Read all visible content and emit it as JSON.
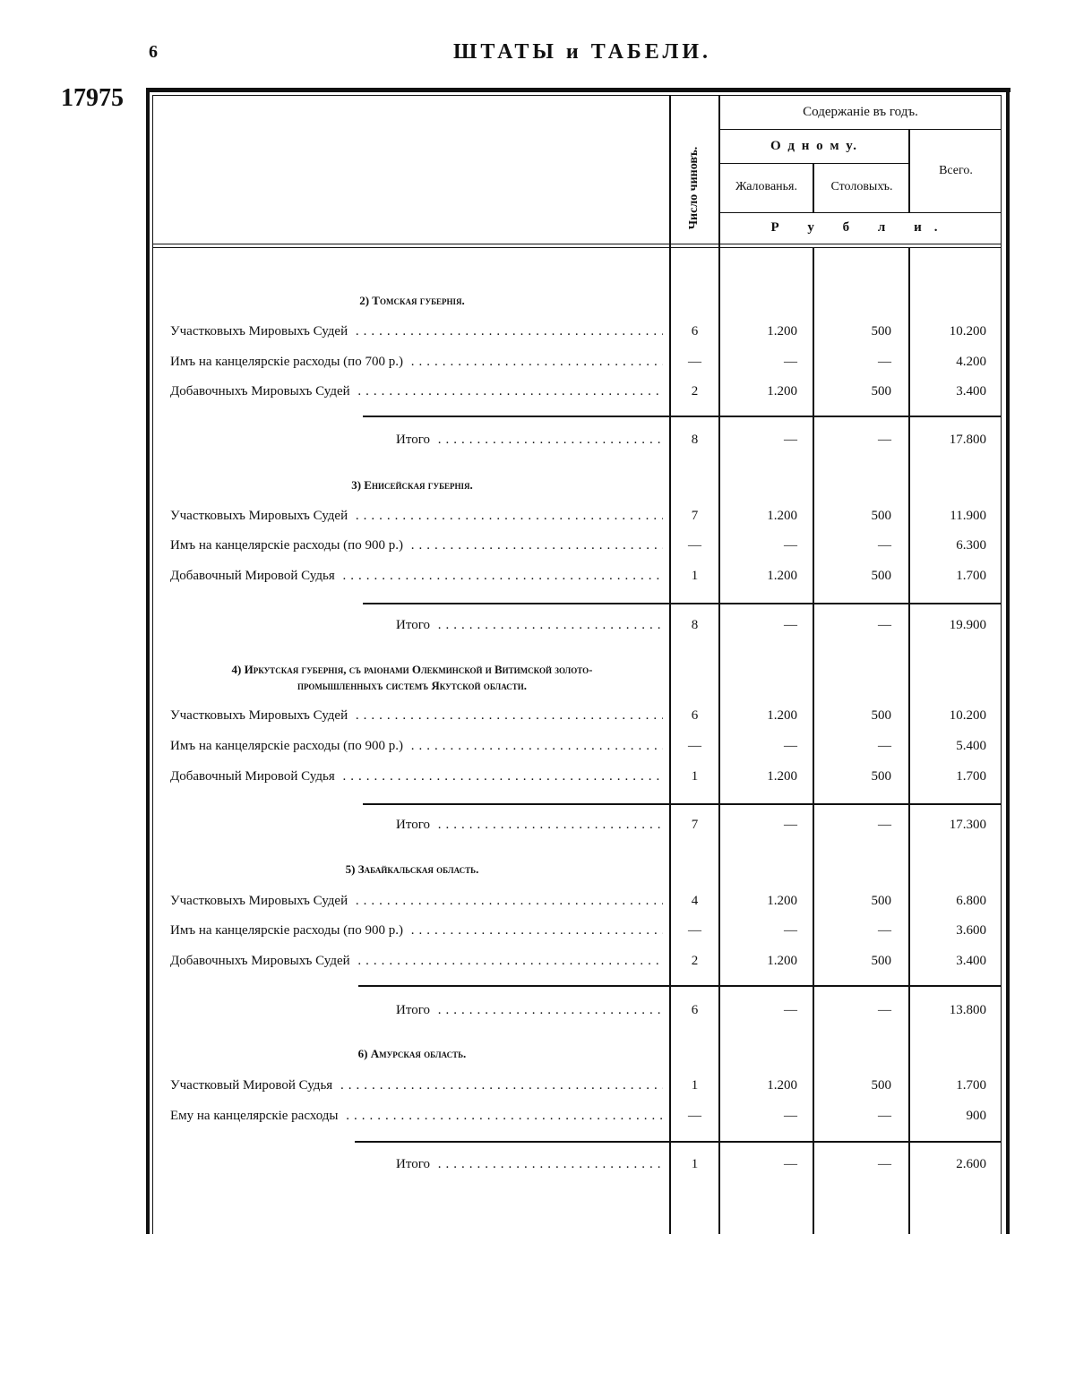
{
  "page_number": "6",
  "running_title": "ШТАТЫ и ТАБЕЛИ.",
  "document_number": "17975",
  "table": {
    "headers": {
      "count": "Число чиновъ.",
      "salary_group": "Содержаніе въ годъ.",
      "per_person": "О д н о м у.",
      "salary": "Жалованья.",
      "board": "Столовыхъ.",
      "total": "Всего.",
      "unit": "Р у б л и."
    },
    "sections": [
      {
        "title": "2) Томская губернія.",
        "rows": [
          {
            "label": "Участковыхъ Мировыхъ Судей",
            "count": "6",
            "salary": "1.200",
            "board": "500",
            "total": "10.200"
          },
          {
            "label": "Имъ на канцелярскіе расходы (по 700 р.)",
            "count": "—",
            "salary": "—",
            "board": "—",
            "total": "4.200"
          },
          {
            "label": "Добавочныхъ Мировыхъ Судей",
            "count": "2",
            "salary": "1.200",
            "board": "500",
            "total": "3.400"
          }
        ],
        "itogo": {
          "label": "Итого",
          "count": "8",
          "salary": "—",
          "board": "—",
          "total": "17.800"
        }
      },
      {
        "title": "3) Енисейская губернія.",
        "rows": [
          {
            "label": "Участковыхъ Мировыхъ Судей",
            "count": "7",
            "salary": "1.200",
            "board": "500",
            "total": "11.900"
          },
          {
            "label": "Имъ на канцелярскіе расходы (по 900 р.)",
            "count": "—",
            "salary": "—",
            "board": "—",
            "total": "6.300"
          },
          {
            "label": "Добавочный Мировой Судья",
            "count": "1",
            "salary": "1.200",
            "board": "500",
            "total": "1.700"
          }
        ],
        "itogo": {
          "label": "Итого",
          "count": "8",
          "salary": "—",
          "board": "—",
          "total": "19.900"
        }
      },
      {
        "title": "4) Иркутская губернія, съ раіонами Олекминской и Витимской золото-",
        "title2": "промышленныхъ системъ Якутской области.",
        "rows": [
          {
            "label": "Участковыхъ Мировыхъ Судей",
            "count": "6",
            "salary": "1.200",
            "board": "500",
            "total": "10.200"
          },
          {
            "label": "Имъ на канцелярскіе расходы (по 900 р.)",
            "count": "—",
            "salary": "—",
            "board": "—",
            "total": "5.400"
          },
          {
            "label": "Добавочный Мировой Судья",
            "count": "1",
            "salary": "1.200",
            "board": "500",
            "total": "1.700"
          }
        ],
        "itogo": {
          "label": "Итого",
          "count": "7",
          "salary": "—",
          "board": "—",
          "total": "17.300"
        }
      },
      {
        "title": "5) Забайкальская область.",
        "rows": [
          {
            "label": "Участковыхъ Мировыхъ Судей",
            "count": "4",
            "salary": "1.200",
            "board": "500",
            "total": "6.800"
          },
          {
            "label": "Имъ на канцелярскіе расходы (по 900 р.)",
            "count": "—",
            "salary": "—",
            "board": "—",
            "total": "3.600"
          },
          {
            "label": "Добавочныхъ Мировыхъ Судей",
            "count": "2",
            "salary": "1.200",
            "board": "500",
            "total": "3.400"
          }
        ],
        "itogo": {
          "label": "Итого",
          "count": "6",
          "salary": "—",
          "board": "—",
          "total": "13.800"
        }
      },
      {
        "title": "6) Амурская область.",
        "rows": [
          {
            "label": "Участковый Мировой Судья",
            "count": "1",
            "salary": "1.200",
            "board": "500",
            "total": "1.700"
          },
          {
            "label": "Ему на канцелярскіе расходы",
            "count": "—",
            "salary": "—",
            "board": "—",
            "total": "900"
          }
        ],
        "itogo": {
          "label": "Итого",
          "count": "1",
          "salary": "—",
          "board": "—",
          "total": "2.600"
        }
      }
    ]
  }
}
